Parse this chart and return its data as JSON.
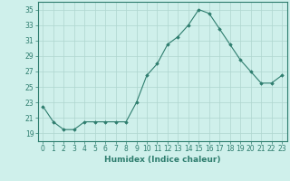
{
  "x": [
    0,
    1,
    2,
    3,
    4,
    5,
    6,
    7,
    8,
    9,
    10,
    11,
    12,
    13,
    14,
    15,
    16,
    17,
    18,
    19,
    20,
    21,
    22,
    23
  ],
  "y": [
    22.5,
    20.5,
    19.5,
    19.5,
    20.5,
    20.5,
    20.5,
    20.5,
    20.5,
    23.0,
    26.5,
    28.0,
    30.5,
    31.5,
    33.0,
    35.0,
    34.5,
    32.5,
    30.5,
    28.5,
    27.0,
    25.5,
    25.5,
    26.5
  ],
  "line_color": "#2e7d6e",
  "marker": "D",
  "marker_size": 1.8,
  "bg_color": "#cff0eb",
  "grid_color": "#aed6cf",
  "xlabel": "Humidex (Indice chaleur)",
  "ylim": [
    18,
    36
  ],
  "xlim": [
    -0.5,
    23.5
  ],
  "yticks": [
    19,
    21,
    23,
    25,
    27,
    29,
    31,
    33,
    35
  ],
  "xticks": [
    0,
    1,
    2,
    3,
    4,
    5,
    6,
    7,
    8,
    9,
    10,
    11,
    12,
    13,
    14,
    15,
    16,
    17,
    18,
    19,
    20,
    21,
    22,
    23
  ],
  "tick_fontsize": 5.5,
  "xlabel_fontsize": 6.5
}
